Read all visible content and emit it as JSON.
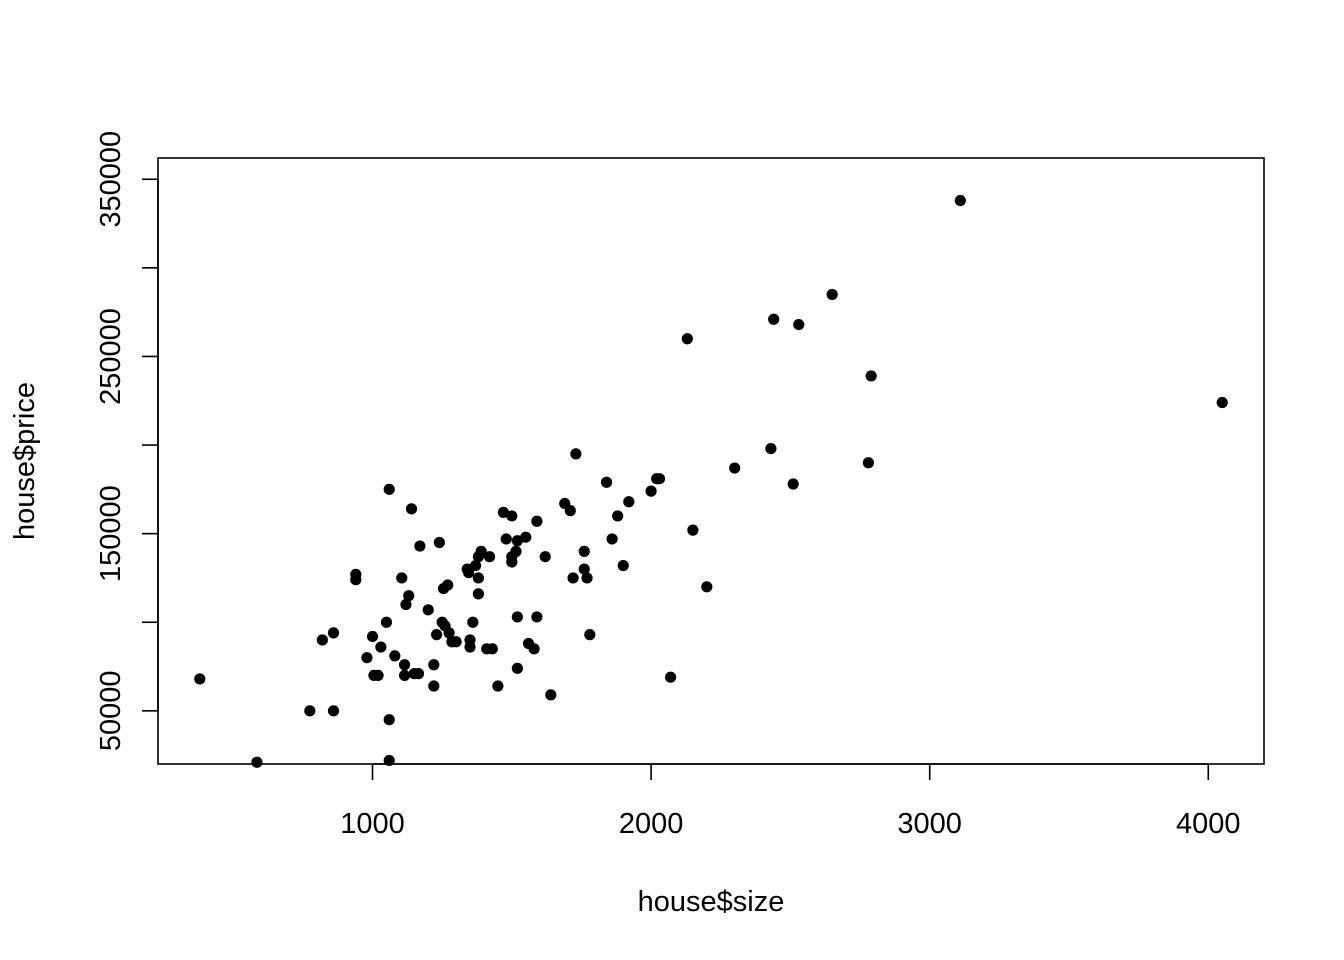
{
  "chart_data": {
    "type": "scatter",
    "title": "",
    "xlabel": "house$size",
    "ylabel": "house$price",
    "xlim": [
      230,
      4200
    ],
    "ylim": [
      20000,
      362000
    ],
    "xticks": [
      1000,
      2000,
      3000,
      4000
    ],
    "xtick_labels": [
      "1000",
      "2000",
      "3000",
      "4000"
    ],
    "yticks": [
      50000,
      100000,
      150000,
      200000,
      250000,
      300000,
      350000
    ],
    "ytick_labels": [
      "50000",
      "",
      "150000",
      "",
      "250000",
      "",
      "350000"
    ],
    "grid": false,
    "legend": "none",
    "point_color": "#000000",
    "points": [
      [
        380,
        68000
      ],
      [
        585,
        21000
      ],
      [
        775,
        50000
      ],
      [
        820,
        90000
      ],
      [
        860,
        94000
      ],
      [
        860,
        50000
      ],
      [
        940,
        127000
      ],
      [
        940,
        124000
      ],
      [
        980,
        80000
      ],
      [
        1000,
        92000
      ],
      [
        1005,
        70000
      ],
      [
        1020,
        70000
      ],
      [
        1030,
        86000
      ],
      [
        1050,
        100000
      ],
      [
        1060,
        175000
      ],
      [
        1060,
        45000
      ],
      [
        1060,
        22000
      ],
      [
        1080,
        81000
      ],
      [
        1105,
        125000
      ],
      [
        1115,
        76000
      ],
      [
        1115,
        70000
      ],
      [
        1120,
        110000
      ],
      [
        1130,
        115000
      ],
      [
        1140,
        164000
      ],
      [
        1150,
        71000
      ],
      [
        1165,
        71000
      ],
      [
        1170,
        143000
      ],
      [
        1200,
        107000
      ],
      [
        1220,
        76000
      ],
      [
        1220,
        64000
      ],
      [
        1230,
        93000
      ],
      [
        1240,
        145000
      ],
      [
        1250,
        100000
      ],
      [
        1255,
        119000
      ],
      [
        1260,
        98000
      ],
      [
        1270,
        121000
      ],
      [
        1275,
        94000
      ],
      [
        1285,
        89000
      ],
      [
        1300,
        89000
      ],
      [
        1340,
        130000
      ],
      [
        1345,
        128000
      ],
      [
        1350,
        86000
      ],
      [
        1350,
        90000
      ],
      [
        1360,
        100000
      ],
      [
        1370,
        132000
      ],
      [
        1380,
        137000
      ],
      [
        1380,
        125000
      ],
      [
        1380,
        116000
      ],
      [
        1390,
        140000
      ],
      [
        1410,
        85000
      ],
      [
        1420,
        137000
      ],
      [
        1430,
        85000
      ],
      [
        1450,
        64000
      ],
      [
        1470,
        162000
      ],
      [
        1480,
        147000
      ],
      [
        1500,
        134000
      ],
      [
        1500,
        137000
      ],
      [
        1500,
        160000
      ],
      [
        1515,
        140000
      ],
      [
        1520,
        146000
      ],
      [
        1520,
        103000
      ],
      [
        1520,
        74000
      ],
      [
        1550,
        148000
      ],
      [
        1560,
        88000
      ],
      [
        1580,
        85000
      ],
      [
        1590,
        103000
      ],
      [
        1590,
        157000
      ],
      [
        1620,
        137000
      ],
      [
        1640,
        59000
      ],
      [
        1690,
        167000
      ],
      [
        1710,
        163000
      ],
      [
        1720,
        125000
      ],
      [
        1730,
        195000
      ],
      [
        1760,
        140000
      ],
      [
        1760,
        130000
      ],
      [
        1770,
        125000
      ],
      [
        1780,
        93000
      ],
      [
        1840,
        179000
      ],
      [
        1860,
        147000
      ],
      [
        1880,
        160000
      ],
      [
        1900,
        132000
      ],
      [
        1920,
        168000
      ],
      [
        2000,
        174000
      ],
      [
        2020,
        181000
      ],
      [
        2030,
        181000
      ],
      [
        2070,
        69000
      ],
      [
        2130,
        260000
      ],
      [
        2150,
        152000
      ],
      [
        2200,
        120000
      ],
      [
        2300,
        187000
      ],
      [
        2430,
        198000
      ],
      [
        2440,
        271000
      ],
      [
        2510,
        178000
      ],
      [
        2530,
        268000
      ],
      [
        2650,
        285000
      ],
      [
        2780,
        190000
      ],
      [
        2790,
        239000
      ],
      [
        3110,
        338000
      ],
      [
        4050,
        224000
      ]
    ]
  }
}
